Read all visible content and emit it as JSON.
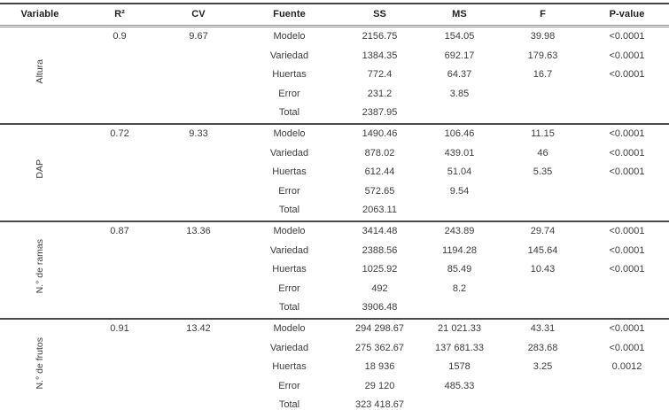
{
  "table": {
    "headers": [
      "Variable",
      "R²",
      "CV",
      "Fuente",
      "SS",
      "MS",
      "F",
      "P-value"
    ],
    "groups": [
      {
        "variable": "Altura",
        "r2": "0.9",
        "cv": "9.67",
        "rows": [
          {
            "fuente": "Modelo",
            "ss": "2156.75",
            "ms": "154.05",
            "f": "39.98",
            "p": "<0.0001"
          },
          {
            "fuente": "Variedad",
            "ss": "1384.35",
            "ms": "692.17",
            "f": "179.63",
            "p": "<0.0001"
          },
          {
            "fuente": "Huertas",
            "ss": "772.4",
            "ms": "64.37",
            "f": "16.7",
            "p": "<0.0001"
          },
          {
            "fuente": "Error",
            "ss": "231.2",
            "ms": "3.85",
            "f": "",
            "p": ""
          },
          {
            "fuente": "Total",
            "ss": "2387.95",
            "ms": "",
            "f": "",
            "p": ""
          }
        ]
      },
      {
        "variable": "DAP",
        "r2": "0.72",
        "cv": "9.33",
        "rows": [
          {
            "fuente": "Modelo",
            "ss": "1490.46",
            "ms": "106.46",
            "f": "11.15",
            "p": "<0.0001"
          },
          {
            "fuente": "Variedad",
            "ss": "878.02",
            "ms": "439.01",
            "f": "46",
            "p": "<0.0001"
          },
          {
            "fuente": "Huertas",
            "ss": "612.44",
            "ms": "51.04",
            "f": "5.35",
            "p": "<0.0001"
          },
          {
            "fuente": "Error",
            "ss": "572.65",
            "ms": "9.54",
            "f": "",
            "p": ""
          },
          {
            "fuente": "Total",
            "ss": "2063.11",
            "ms": "",
            "f": "",
            "p": ""
          }
        ]
      },
      {
        "variable": "N.° de ramas",
        "r2": "0.87",
        "cv": "13.36",
        "rows": [
          {
            "fuente": "Modelo",
            "ss": "3414.48",
            "ms": "243.89",
            "f": "29.74",
            "p": "<0.0001"
          },
          {
            "fuente": "Variedad",
            "ss": "2388.56",
            "ms": "1194.28",
            "f": "145.64",
            "p": "<0.0001"
          },
          {
            "fuente": "Huertas",
            "ss": "1025.92",
            "ms": "85.49",
            "f": "10.43",
            "p": "<0.0001"
          },
          {
            "fuente": "Error",
            "ss": "492",
            "ms": "8.2",
            "f": "",
            "p": ""
          },
          {
            "fuente": "Total",
            "ss": "3906.48",
            "ms": "",
            "f": "",
            "p": ""
          }
        ]
      },
      {
        "variable": "N.° de frutos",
        "r2": "0.91",
        "cv": "13.42",
        "rows": [
          {
            "fuente": "Modelo",
            "ss": "294 298.67",
            "ms": "21 021.33",
            "f": "43.31",
            "p": "<0.0001"
          },
          {
            "fuente": "Variedad",
            "ss": "275 362.67",
            "ms": "137 681.33",
            "f": "283.68",
            "p": "<0.0001"
          },
          {
            "fuente": "Huertas",
            "ss": "18 936",
            "ms": "1578",
            "f": "3.25",
            "p": "0.0012"
          },
          {
            "fuente": "Error",
            "ss": "29 120",
            "ms": "485.33",
            "f": "",
            "p": ""
          },
          {
            "fuente": "Total",
            "ss": "323 418.67",
            "ms": "",
            "f": "",
            "p": ""
          }
        ]
      }
    ]
  }
}
